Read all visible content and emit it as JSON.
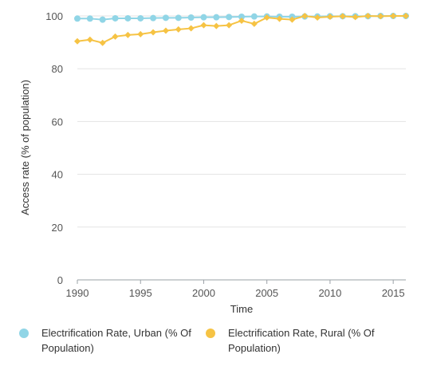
{
  "chart_data": {
    "type": "line",
    "xlabel": "Time",
    "ylabel": "Access rate (% of population)",
    "xlim": [
      1990,
      2016
    ],
    "ylim": [
      0,
      100
    ],
    "x_ticks": [
      1990,
      1995,
      2000,
      2005,
      2010,
      2015
    ],
    "y_ticks": [
      0,
      20,
      40,
      60,
      80,
      100
    ],
    "grid": "horizontal",
    "legend_position": "bottom",
    "x": [
      1990,
      1991,
      1992,
      1993,
      1994,
      1995,
      1996,
      1997,
      1998,
      1999,
      2000,
      2001,
      2002,
      2003,
      2004,
      2005,
      2006,
      2007,
      2008,
      2009,
      2010,
      2011,
      2012,
      2013,
      2014,
      2015,
      2016
    ],
    "series": [
      {
        "name": "Electrification Rate, Urban (% Of Population)",
        "color": "#90d5e6",
        "values": [
          99.0,
          99.0,
          98.6,
          99.1,
          99.1,
          99.1,
          99.2,
          99.3,
          99.3,
          99.4,
          99.5,
          99.5,
          99.6,
          99.7,
          99.8,
          99.8,
          99.7,
          99.7,
          99.8,
          99.8,
          99.9,
          99.9,
          99.9,
          99.9,
          100.0,
          100.0,
          100.0
        ]
      },
      {
        "name": "Electrification Rate, Rural (% Of Population)",
        "color": "#f6c344",
        "values": [
          90.4,
          91.0,
          89.8,
          92.2,
          92.8,
          93.1,
          93.8,
          94.4,
          94.9,
          95.3,
          96.5,
          96.2,
          96.5,
          98.2,
          97.0,
          99.4,
          98.9,
          98.6,
          100.0,
          99.4,
          99.7,
          99.9,
          99.6,
          100.0,
          99.9,
          100.0,
          100.0
        ]
      }
    ]
  },
  "legend": {
    "urban_label": "Electrification Rate, Urban (% Of Population)",
    "rural_label": "Electrification Rate, Rural (% Of Population)"
  }
}
